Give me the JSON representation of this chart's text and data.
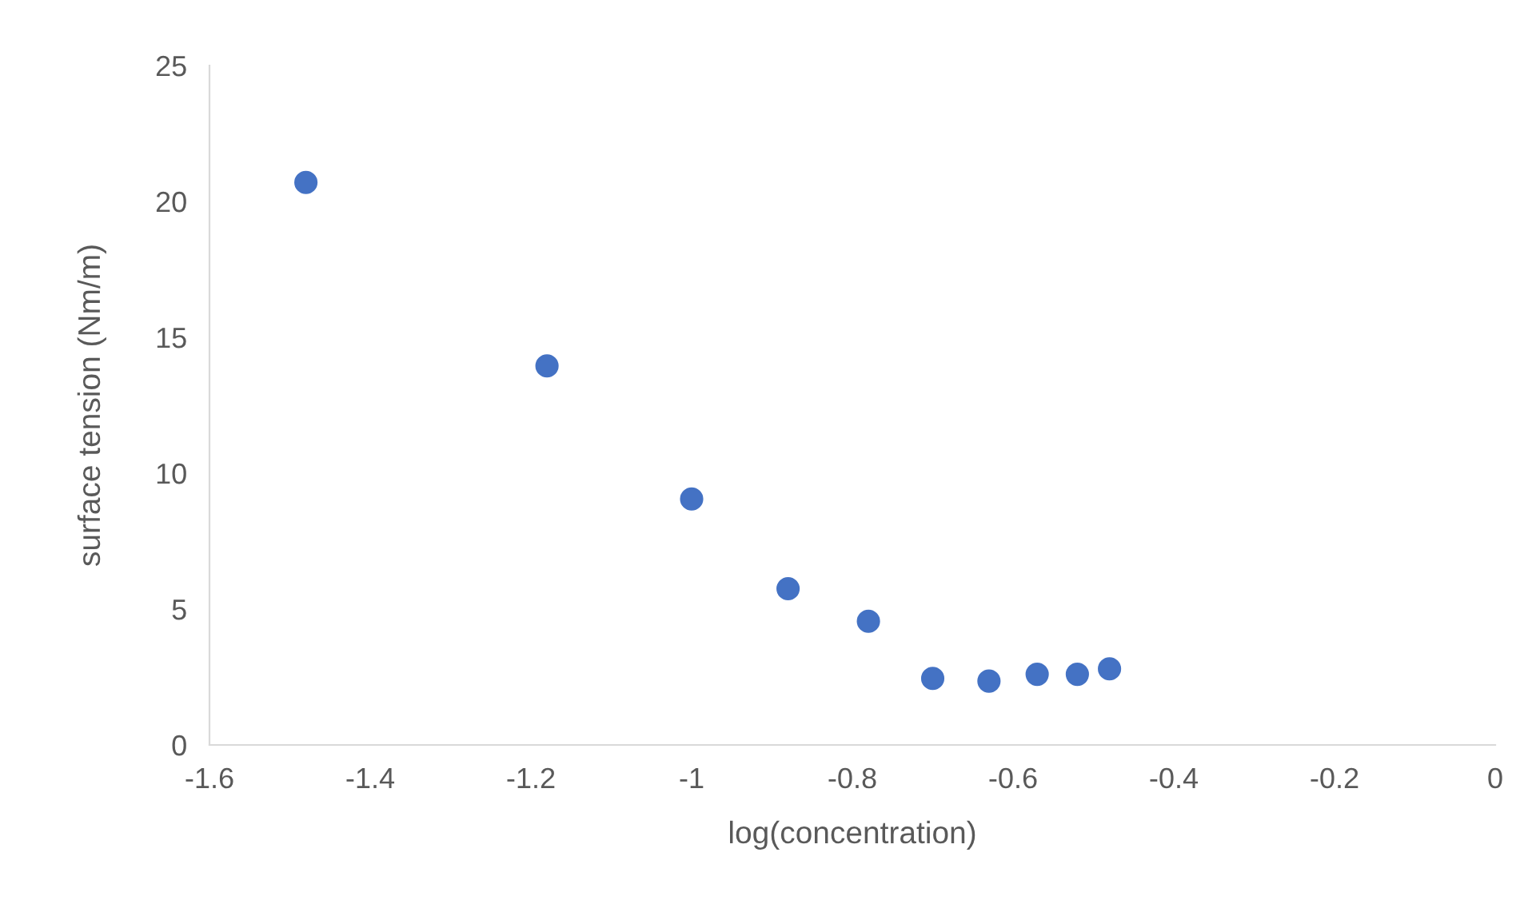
{
  "chart_data": {
    "type": "scatter",
    "xlabel": "log(concentration)",
    "ylabel": "surface tension (Nm/m)",
    "x": [
      -1.48,
      -1.18,
      -1.0,
      -0.88,
      -0.78,
      -0.7,
      -0.63,
      -0.57,
      -0.52,
      -0.48
    ],
    "series": [
      {
        "color": "#4472c4",
        "values": [
          20.7,
          13.95,
          9.05,
          5.75,
          4.55,
          2.45,
          2.35,
          2.6,
          2.6,
          2.8
        ]
      }
    ],
    "xlim": [
      -1.6,
      0
    ],
    "xticks": [
      {
        "value": -1.6,
        "label": "-1.6"
      },
      {
        "value": -1.4,
        "label": "-1.4"
      },
      {
        "value": -1.2,
        "label": "-1.2"
      },
      {
        "value": -1,
        "label": "-1"
      },
      {
        "value": -0.8,
        "label": "-0.8"
      },
      {
        "value": -0.6,
        "label": "-0.6"
      },
      {
        "value": -0.4,
        "label": "-0.4"
      },
      {
        "value": -0.2,
        "label": "-0.2"
      },
      0
    ],
    "ylim": [
      0,
      25
    ],
    "yticks": [
      0,
      5,
      10,
      15,
      20,
      25
    ],
    "marker": "circle",
    "grid": false
  }
}
